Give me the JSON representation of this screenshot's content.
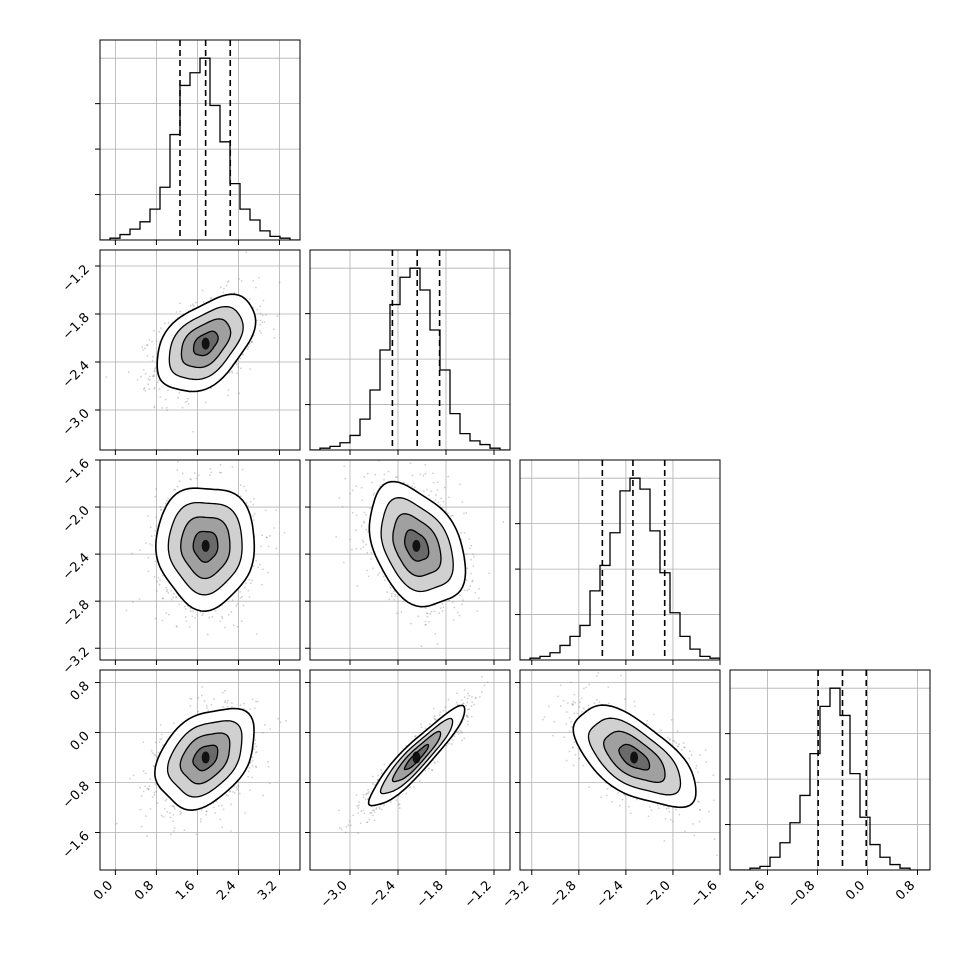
{
  "chart_data": {
    "type": "corner",
    "n_params": 4,
    "colors": {
      "hist": "#000000",
      "grid": "#b0b0b0",
      "points": "#777777",
      "density": "#000000"
    },
    "grid": true,
    "params": [
      {
        "index": 0,
        "range": [
          -0.3,
          3.6
        ],
        "ticks": [
          "0.0",
          "0.8",
          "1.6",
          "2.4",
          "3.2"
        ],
        "tick_values": [
          0.0,
          0.8,
          1.6,
          2.4,
          3.2
        ],
        "quantiles": [
          1.26,
          1.76,
          2.24
        ],
        "center": 1.76,
        "sd": 0.48,
        "hist_counts": [
          0,
          1,
          3,
          6,
          10,
          17,
          29,
          58,
          85,
          92,
          100,
          74,
          54,
          31,
          17,
          11,
          5,
          2,
          1,
          0
        ]
      },
      {
        "index": 1,
        "range": [
          -3.5,
          -1.0
        ],
        "ticks": [
          "-3.0",
          "-2.4",
          "-1.8",
          "-1.2"
        ],
        "tick_values": [
          -3.0,
          -2.4,
          -1.8,
          -1.2
        ],
        "quantiles": [
          -2.47,
          -2.16,
          -1.88
        ],
        "center": -2.17,
        "sd": 0.3,
        "hist_counts": [
          0,
          1,
          2,
          4,
          8,
          17,
          33,
          55,
          80,
          95,
          100,
          88,
          66,
          44,
          20,
          9,
          5,
          3,
          1,
          0
        ]
      },
      {
        "index": 2,
        "range": [
          -3.3,
          -1.6
        ],
        "ticks": [
          "-3.2",
          "-2.8",
          "-2.4",
          "-2.0",
          "-1.6"
        ],
        "tick_values": [
          -3.2,
          -2.8,
          -2.4,
          -2.0,
          -1.6
        ],
        "quantiles": [
          -2.6,
          -2.34,
          -2.07
        ],
        "center": -2.33,
        "sd": 0.26,
        "hist_counts": [
          0,
          1,
          2,
          4,
          8,
          13,
          19,
          38,
          52,
          70,
          93,
          100,
          94,
          71,
          48,
          26,
          13,
          6,
          2,
          1
        ]
      },
      {
        "index": 3,
        "range": [
          -2.2,
          1.0
        ],
        "ticks": [
          "-1.6",
          "-0.8",
          "0.0",
          "0.8"
        ],
        "tick_values": [
          -1.6,
          -0.8,
          0.0,
          0.8
        ],
        "quantiles": [
          -0.79,
          -0.4,
          -0.02
        ],
        "center": -0.4,
        "sd": 0.4,
        "hist_counts": [
          0,
          0,
          1,
          2,
          7,
          15,
          26,
          41,
          64,
          90,
          100,
          85,
          53,
          29,
          14,
          7,
          3,
          1,
          0,
          0
        ]
      }
    ],
    "correlations": [
      {
        "i": 1,
        "j": 0,
        "rho": 0.45
      },
      {
        "i": 2,
        "j": 0,
        "rho": 0.0
      },
      {
        "i": 2,
        "j": 1,
        "rho": -0.35
      },
      {
        "i": 3,
        "j": 0,
        "rho": 0.35
      },
      {
        "i": 3,
        "j": 1,
        "rho": 0.92
      },
      {
        "i": 3,
        "j": 2,
        "rho": -0.6
      }
    ],
    "contour_levels_sigma": [
      0.5,
      1.0,
      1.5,
      2.0
    ]
  }
}
